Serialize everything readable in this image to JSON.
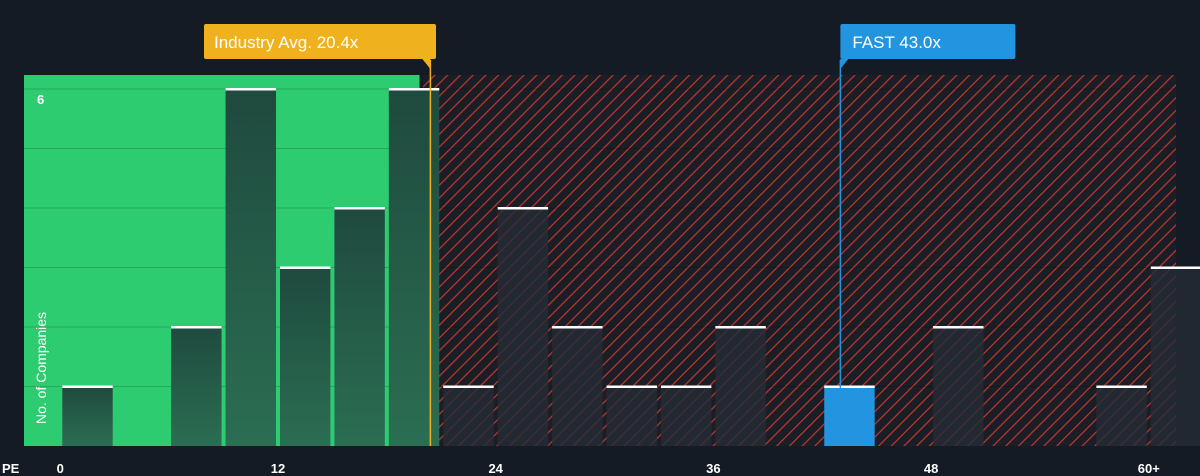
{
  "chart_data": {
    "type": "bar",
    "xlabel": "PE",
    "ylabel": "No. of Companies",
    "x_ticks": [
      "0",
      "12",
      "24",
      "36",
      "48",
      "60+"
    ],
    "x_tick_values": [
      0,
      12,
      24,
      36,
      48,
      60
    ],
    "xlim": [
      -2,
      61.5
    ],
    "y_ticks": [
      "6"
    ],
    "y_tick_values": [
      6
    ],
    "ylim": [
      0,
      6
    ],
    "bin_width": 3,
    "bins": [
      {
        "x0": 0,
        "count": 1
      },
      {
        "x0": 3,
        "count": 0
      },
      {
        "x0": 6,
        "count": 2
      },
      {
        "x0": 9,
        "count": 6
      },
      {
        "x0": 12,
        "count": 3
      },
      {
        "x0": 15,
        "count": 4
      },
      {
        "x0": 18,
        "count": 6
      },
      {
        "x0": 21,
        "count": 1
      },
      {
        "x0": 24,
        "count": 4
      },
      {
        "x0": 27,
        "count": 2
      },
      {
        "x0": 30,
        "count": 1
      },
      {
        "x0": 33,
        "count": 1
      },
      {
        "x0": 36,
        "count": 2
      },
      {
        "x0": 39,
        "count": 0
      },
      {
        "x0": 42,
        "count": 1
      },
      {
        "x0": 45,
        "count": 0
      },
      {
        "x0": 48,
        "count": 2
      },
      {
        "x0": 51,
        "count": 0
      },
      {
        "x0": 54,
        "count": 0
      },
      {
        "x0": 57,
        "count": 1
      },
      {
        "x0": 60,
        "count": 3
      }
    ],
    "highlight_bin_x0": 42,
    "industry_avg": {
      "value": 20.4,
      "label": "Industry Avg. 20.4x"
    },
    "company": {
      "value": 43.0,
      "label": "FAST 43.0x"
    },
    "colors": {
      "background": "#151b24",
      "fair_zone": "#2ecc71",
      "over_zone_stripe": "#c0392b",
      "bar_dark": "#1e4a3e",
      "company_bar": "#2394df",
      "industry_marker": "#f0b11e",
      "company_marker": "#2394df",
      "bar_cap": "#ffffff"
    }
  }
}
